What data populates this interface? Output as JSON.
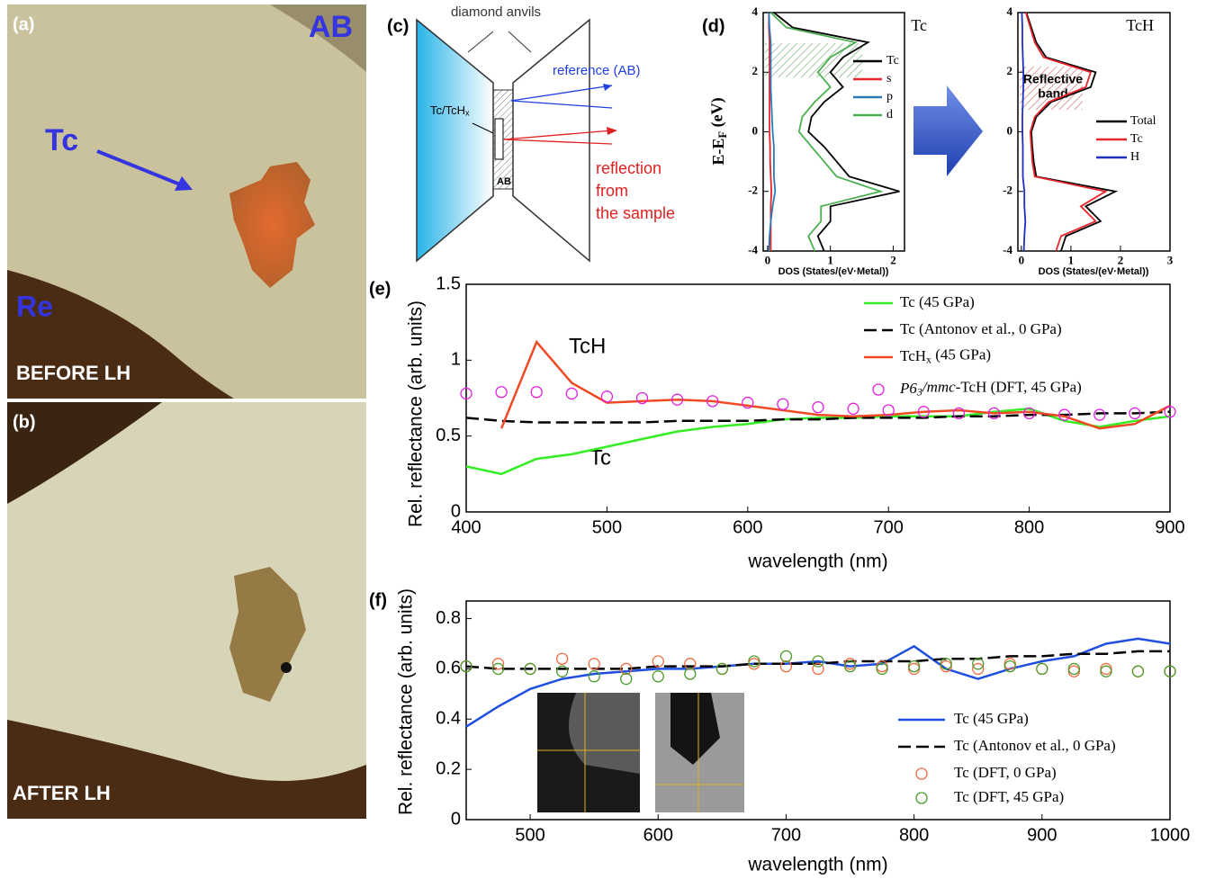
{
  "panels": {
    "a": {
      "label": "(a)",
      "sample": "AB",
      "metal": "Tc",
      "gasket": "Re",
      "caption": "BEFORE LH"
    },
    "b": {
      "label": "(b)",
      "caption": "AFTER LH"
    },
    "c": {
      "label": "(c)",
      "anvils": "diamond anvils",
      "reference": "reference (AB)",
      "sample": [
        "Tc/TcH",
        {
          "text": "x",
          "sub": true
        }
      ],
      "medium": "AB",
      "reflection": [
        "reflection",
        "from",
        "the sample"
      ]
    }
  },
  "chart_data": [
    {
      "type": "line",
      "label": "(d)",
      "tag": "Tc",
      "ylabel": [
        "E-E",
        {
          "text": "F",
          "sub": true
        },
        " (eV)"
      ],
      "xlabel": "DOS (States/(eV·Metal))",
      "y": [
        -4,
        -3.5,
        -3,
        -2.5,
        -2,
        -1.5,
        -1,
        -0.5,
        0,
        0.5,
        1,
        1.5,
        2,
        2.5,
        3,
        3.5,
        4
      ],
      "xlim": [
        -0.07,
        2.18
      ],
      "xticks": [
        0,
        1,
        2
      ],
      "ylim": [
        -4,
        4
      ],
      "yticks": [
        -4,
        -2,
        0,
        2,
        4
      ],
      "series": [
        {
          "name": "Tc",
          "color": "#000000",
          "values": [
            0.9,
            0.8,
            1.0,
            1.0,
            2.1,
            1.3,
            1.1,
            0.9,
            0.65,
            0.7,
            0.9,
            1.2,
            1.0,
            1.2,
            1.6,
            0.4,
            0.1
          ]
        },
        {
          "name": "s",
          "color": "#e8252a",
          "values": [
            0.05,
            0.05,
            0.05,
            0.05,
            0.06,
            0.05,
            0.04,
            0.04,
            0.03,
            0.03,
            0.03,
            0.03,
            0.03,
            0.03,
            0.03,
            0.02,
            0.02
          ]
        },
        {
          "name": "p",
          "color": "#2a7ab8",
          "values": [
            0.02,
            0.03,
            0.05,
            0.08,
            0.12,
            0.1,
            0.1,
            0.1,
            0.08,
            0.07,
            0.06,
            0.05,
            0.05,
            0.05,
            0.05,
            0.03,
            0.02
          ]
        },
        {
          "name": "d",
          "color": "#4caf50",
          "values": [
            0.75,
            0.65,
            0.85,
            0.85,
            1.8,
            1.1,
            0.9,
            0.7,
            0.5,
            0.55,
            0.75,
            1.0,
            0.8,
            1.0,
            1.4,
            0.3,
            0.05
          ]
        }
      ]
    },
    {
      "type": "line",
      "tag": "TcH",
      "annotation": [
        "Reflective",
        "band"
      ],
      "xlabel": "DOS (States/(eV·Metal))",
      "y": [
        -4,
        -3.5,
        -3,
        -2.5,
        -2,
        -1.5,
        -1,
        -0.5,
        0,
        0.5,
        1,
        1.5,
        2,
        2.5,
        3,
        3.5,
        4
      ],
      "xlim": [
        -0.07,
        3
      ],
      "xticks": [
        0,
        1,
        2,
        3
      ],
      "ylim": [
        -4,
        4
      ],
      "yticks": [
        -4,
        -2,
        0,
        2,
        4
      ],
      "series": [
        {
          "name": "Total",
          "color": "#000000",
          "values": [
            0.8,
            0.9,
            1.6,
            1.3,
            1.9,
            0.3,
            0.25,
            0.22,
            0.2,
            0.3,
            0.6,
            1.4,
            1.5,
            0.5,
            0.3,
            0.2,
            0.1
          ]
        },
        {
          "name": "Tc",
          "color": "#e8252a",
          "values": [
            0.7,
            0.8,
            1.5,
            1.2,
            1.7,
            0.27,
            0.22,
            0.2,
            0.18,
            0.27,
            0.55,
            1.3,
            1.4,
            0.45,
            0.27,
            0.18,
            0.09
          ]
        },
        {
          "name": "H",
          "color": "#1f2fbf",
          "values": [
            0.05,
            0.06,
            0.08,
            0.06,
            0.06,
            0.03,
            0.03,
            0.03,
            0.02,
            0.02,
            0.03,
            0.04,
            0.04,
            0.03,
            0.02,
            0.02,
            0.01
          ]
        }
      ]
    },
    {
      "type": "line",
      "label": "(e)",
      "xlabel": "wavelength (nm)",
      "ylabel": "Rel. reflectance (arb. units)",
      "annotations": [
        "TcH",
        "Tc"
      ],
      "x": [
        400,
        425,
        450,
        475,
        500,
        525,
        550,
        575,
        600,
        625,
        650,
        675,
        700,
        725,
        750,
        775,
        800,
        825,
        850,
        875,
        900
      ],
      "xlim": [
        400,
        900
      ],
      "xticks": [
        400,
        500,
        600,
        700,
        800,
        900
      ],
      "ylim": [
        0,
        1.5
      ],
      "yticks": [
        0,
        0.5,
        1,
        1.5
      ],
      "series": [
        {
          "name": "Tc (45 GPa)",
          "color": "#33ee22",
          "values": [
            0.3,
            0.25,
            0.35,
            0.38,
            0.43,
            0.48,
            0.53,
            0.56,
            0.58,
            0.61,
            0.62,
            0.62,
            0.63,
            0.63,
            0.63,
            0.66,
            0.68,
            0.6,
            0.56,
            0.6,
            0.63
          ]
        },
        {
          "name": "Tc (Antonov et al., 0 GPa)",
          "color": "#000000",
          "dash": true,
          "values": [
            0.62,
            0.6,
            0.59,
            0.59,
            0.59,
            0.59,
            0.6,
            0.6,
            0.6,
            0.61,
            0.61,
            0.62,
            0.62,
            0.62,
            0.63,
            0.63,
            0.64,
            0.64,
            0.65,
            0.65,
            0.66
          ]
        },
        {
          "name": [
            "TcH",
            {
              "text": "x",
              "sub": true
            },
            " (45 GPa)"
          ],
          "color": "#f04a25",
          "values": [
            null,
            0.55,
            1.12,
            0.85,
            0.72,
            0.73,
            0.74,
            0.73,
            0.7,
            0.67,
            0.64,
            0.63,
            0.64,
            0.66,
            0.67,
            0.65,
            0.66,
            0.63,
            0.55,
            0.58,
            0.7
          ]
        },
        {
          "name": [
            {
              "text": "P6",
              "italic": true
            },
            {
              "text": "3",
              "sub": true,
              "italic": true
            },
            {
              "text": "/mmc",
              "italic": true
            },
            "-TcH (DFT, 45 GPa)"
          ],
          "color": "#e020e0",
          "marker": "circle",
          "values": [
            0.78,
            0.79,
            0.79,
            0.78,
            0.76,
            0.75,
            0.74,
            0.73,
            0.72,
            0.71,
            0.69,
            0.68,
            0.67,
            0.66,
            0.65,
            0.65,
            0.65,
            0.64,
            0.64,
            0.65,
            0.66
          ]
        }
      ]
    },
    {
      "type": "line",
      "label": "(f)",
      "xlabel": "wavelength (nm)",
      "ylabel": "Rel. reflectance (arb. units)",
      "x": [
        450,
        475,
        500,
        525,
        550,
        575,
        600,
        625,
        650,
        675,
        700,
        725,
        750,
        775,
        800,
        825,
        850,
        875,
        900,
        925,
        950,
        975,
        1000
      ],
      "xlim": [
        450,
        1000
      ],
      "xticks": [
        500,
        600,
        700,
        800,
        900,
        1000
      ],
      "ylim": [
        0,
        0.87
      ],
      "yticks": [
        0,
        0.2,
        0.4,
        0.6,
        0.8
      ],
      "series": [
        {
          "name": "Tc (45 GPa)",
          "color": "#1f4fe0",
          "values": [
            0.37,
            0.45,
            0.52,
            0.56,
            0.58,
            0.59,
            0.6,
            0.6,
            0.61,
            0.62,
            0.62,
            0.63,
            0.61,
            0.62,
            0.69,
            0.6,
            0.56,
            0.6,
            0.63,
            0.65,
            0.7,
            0.72,
            0.7
          ]
        },
        {
          "name": "Tc (Antonov et al., 0 GPa)",
          "color": "#000000",
          "dash": true,
          "values": [
            0.61,
            0.6,
            0.6,
            0.6,
            0.6,
            0.6,
            0.61,
            0.61,
            0.61,
            0.62,
            0.62,
            0.62,
            0.63,
            0.63,
            0.63,
            0.64,
            0.64,
            0.65,
            0.65,
            0.66,
            0.66,
            0.67,
            0.67
          ]
        },
        {
          "name": "Tc (DFT, 0 GPa)",
          "color": "#f06a40",
          "marker": "circle",
          "values": [
            0.61,
            0.62,
            0.6,
            0.64,
            0.62,
            0.6,
            0.63,
            0.62,
            0.6,
            0.62,
            0.61,
            0.6,
            0.62,
            0.61,
            0.6,
            0.61,
            0.6,
            0.62,
            0.6,
            0.59,
            0.6,
            0.59,
            0.59
          ]
        },
        {
          "name": "Tc (DFT, 45 GPa)",
          "color": "#4a9a2a",
          "marker": "circle",
          "values": [
            0.61,
            0.6,
            0.6,
            0.59,
            0.57,
            0.56,
            0.57,
            0.58,
            0.6,
            0.63,
            0.65,
            0.63,
            0.61,
            0.6,
            0.61,
            0.62,
            0.62,
            0.61,
            0.6,
            0.6,
            0.59,
            0.59,
            0.59
          ]
        }
      ]
    }
  ]
}
